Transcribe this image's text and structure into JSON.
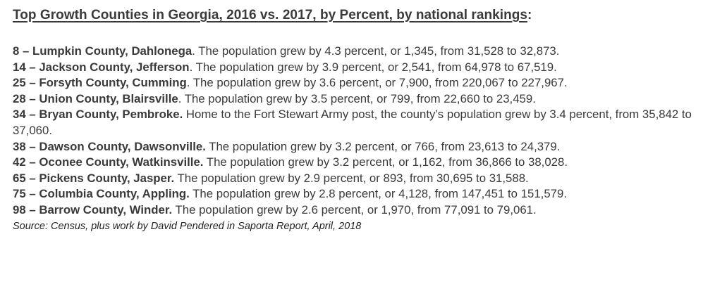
{
  "title": {
    "underlined": "Top Growth Counties in Georgia, 2016 vs. 2017, by Percent, by national rankings",
    "suffix": ":"
  },
  "entries": [
    {
      "head": "8 – Lumpkin County, Dahlonega",
      "text": ". The population grew by 4.3 percent, or 1,345, from 31,528 to 32,873."
    },
    {
      "head": "14 – Jackson County, Jefferson",
      "text": ". The population grew by 3.9 percent, or 2,541, from 64,978 to 67,519."
    },
    {
      "head": "25 – Forsyth County, Cumming",
      "text": ". The population grew by 3.6 percent, or 7,900, from 220,067 to 227,967."
    },
    {
      "head": "28 – Union County, Blairsville",
      "text": ". The population grew by 3.5 percent, or 799, from 22,660 to 23,459."
    },
    {
      "head": "34 – Bryan County, Pembroke.",
      "text": " Home to the Fort Stewart Army post, the county’s population grew by 3.4 percent, from 35,842 to 37,060."
    },
    {
      "head": "38 – Dawson County, Dawsonville.",
      "text": " The population grew by 3.2 percent, or 766, from 23,613 to 24,379."
    },
    {
      "head": "42 – Oconee County, Watkinsville.",
      "text": " The population grew by 3.2 percent, or 1,162, from 36,866 to 38,028."
    },
    {
      "head": "65 – Pickens County, Jasper.",
      "text": " The population grew by 2.9 percent, or 893, from 30,695 to 31,588."
    },
    {
      "head": "75 – Columbia County, Appling.",
      "text": " The population grew by 2.8 percent, or 4,128, from 147,451 to 151,579."
    },
    {
      "head": "98 – Barrow County, Winder.",
      "text": " The population grew by 2.6 percent, or 1,970, from 77,091 to 79,061."
    }
  ],
  "source": "Source: Census, plus work by David Pendered in Saporta Report, April, 2018"
}
